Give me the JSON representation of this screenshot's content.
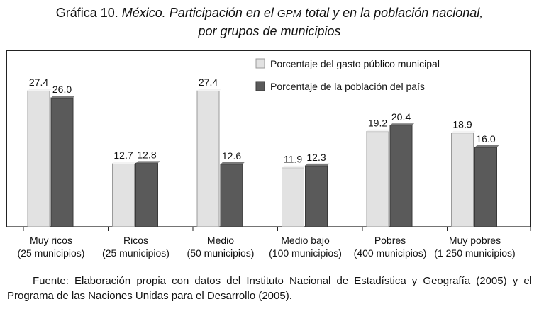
{
  "header": {
    "prefix": "Gráfica 10.",
    "line1_italic": "México. Participación en el",
    "gpm": "GPM",
    "line1_rest": "total y en la población nacional,",
    "line2": "por grupos de municipios"
  },
  "chart_data": {
    "type": "bar",
    "categories": [
      [
        "Muy ricos",
        "(25 municipios)"
      ],
      [
        "Ricos",
        "(25 municipios)"
      ],
      [
        "Medio",
        "(50 municipios)"
      ],
      [
        "Medio bajo",
        "(100 municipios)"
      ],
      [
        "Pobres",
        "(400 municipios)"
      ],
      [
        "Muy pobres",
        "(1 250 municipios)"
      ]
    ],
    "series": [
      {
        "name": "Porcentaje del gasto público municipal",
        "values": [
          27.4,
          12.7,
          27.4,
          11.9,
          19.2,
          18.9
        ],
        "color": "#e2e2e2"
      },
      {
        "name": "Porcentaje de la población del país",
        "values": [
          26.0,
          12.8,
          12.6,
          12.3,
          20.4,
          16.0
        ],
        "color": "#5a5a5a"
      }
    ],
    "ylim": [
      0,
      30
    ],
    "grid": false,
    "legend_position": "top-right",
    "data_labels": true
  },
  "source": "Fuente: Elaboración propia con datos del Instituto Nacional de Estadística y Geografía (2005) y el Programa de las Naciones Unidas para el Desarrollo (2005)."
}
